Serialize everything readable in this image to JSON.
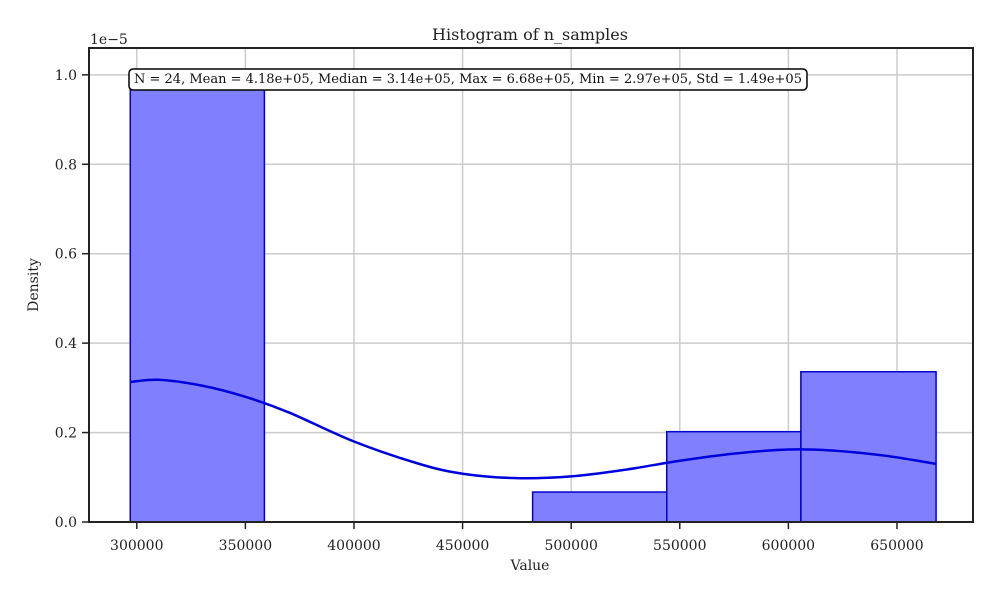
{
  "chart_data": {
    "type": "bar",
    "title": "Histogram of n_samples",
    "xlabel": "Value",
    "ylabel": "Density",
    "y_exponent_label": "1e−5",
    "xlim": [
      278000,
      685000
    ],
    "ylim": [
      0,
      1.06
    ],
    "x_ticks": [
      300000,
      350000,
      400000,
      450000,
      500000,
      550000,
      600000,
      650000
    ],
    "y_ticks": [
      0.0,
      0.2,
      0.4,
      0.6,
      0.8,
      1.0
    ],
    "grid": true,
    "bins": [
      {
        "x0": 297000,
        "x1": 358750,
        "density": 0.97
      },
      {
        "x0": 358750,
        "x1": 420500,
        "density": 0.0
      },
      {
        "x0": 420500,
        "x1": 482250,
        "density": 0.0
      },
      {
        "x0": 482250,
        "x1": 544000,
        "density": 0.067
      },
      {
        "x0": 544000,
        "x1": 605750,
        "density": 0.202
      },
      {
        "x0": 605750,
        "x1": 668000,
        "density": 0.336
      }
    ],
    "kde": {
      "x": [
        297000,
        310000,
        330000,
        350000,
        370000,
        400000,
        430000,
        450000,
        475000,
        500000,
        525000,
        550000,
        575000,
        600000,
        620000,
        645000,
        668000
      ],
      "y": [
        0.313,
        0.318,
        0.305,
        0.28,
        0.245,
        0.18,
        0.13,
        0.108,
        0.098,
        0.102,
        0.117,
        0.137,
        0.153,
        0.162,
        0.16,
        0.148,
        0.13
      ]
    },
    "annotation": "N = 24, Mean = 4.18e+05, Median = 3.14e+05, Max = 6.68e+05, Min = 2.97e+05, Std = 1.49e+05",
    "colors": {
      "bar_fill": "#8080ff",
      "bar_edge": "#0000cc",
      "kde_line": "#0000dd",
      "grid": "#cccccc",
      "axes": "#222222"
    }
  }
}
